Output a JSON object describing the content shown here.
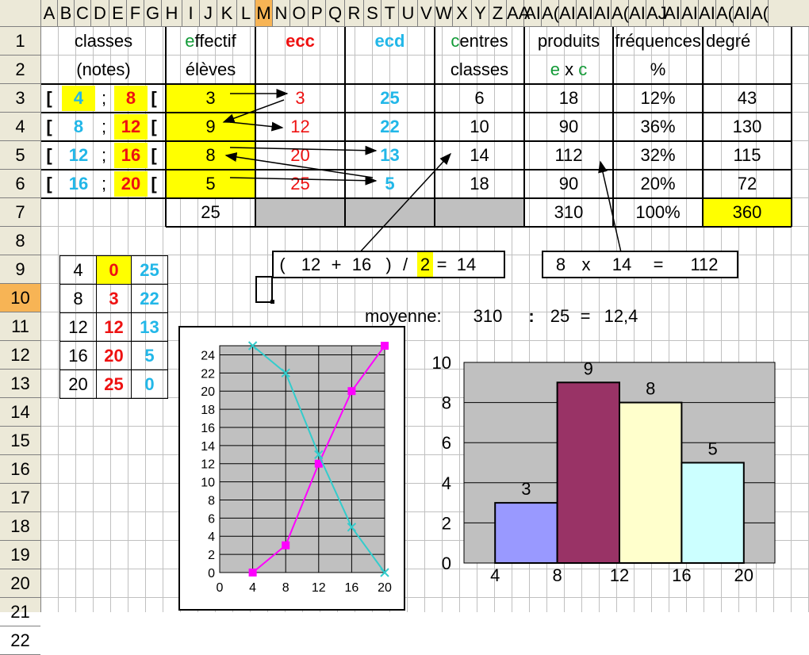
{
  "column_headers": [
    "A",
    "B",
    "C",
    "D",
    "E",
    "F",
    "G",
    "H",
    "I",
    "J",
    "K",
    "L",
    "M",
    "N",
    "O",
    "P",
    "Q",
    "R",
    "S",
    "T",
    "U",
    "V",
    "W",
    "X",
    "Y",
    "Z",
    "AA",
    "AB",
    "AC",
    "AD",
    "AE",
    "AF",
    "AG",
    "AH",
    "AI",
    "AJ",
    "AK",
    "AL",
    "AM",
    "AN",
    "AO",
    "AP",
    "AQ"
  ],
  "column_headers_visible": [
    "A",
    "B",
    "C",
    "D",
    "E",
    "F",
    "G",
    "H",
    "I",
    "J",
    "K",
    "L",
    "M",
    "N",
    "O",
    "P",
    "Q",
    "R",
    "S",
    "T",
    "U",
    "V",
    "W",
    "X",
    "Y",
    "Z",
    "AA",
    "AI",
    "A(",
    "AI",
    "AI",
    "AI",
    "A(",
    "AI",
    "AJ",
    "AI",
    "AI",
    "AI",
    "A(",
    "AI",
    "A("
  ],
  "selected_column": "M",
  "selected_row": "10",
  "row_headers": [
    "1",
    "2",
    "3",
    "4",
    "5",
    "6",
    "7",
    "8",
    "9",
    "10",
    "11",
    "12",
    "13",
    "14",
    "15",
    "16",
    "17",
    "18",
    "19",
    "20",
    "21",
    "22"
  ],
  "table": {
    "header1": [
      "classes",
      "effectif",
      "ecc",
      "ecd",
      "centres",
      "produits",
      "fréquences",
      "degré"
    ],
    "header2": [
      "(notes)",
      "élèves",
      "",
      "",
      "classes",
      "e x c",
      "%",
      ""
    ],
    "header_effectif_initial": "e",
    "header_effectif_rest": "ffectif",
    "header_centres_initial": "c",
    "header_centres_rest": "entres",
    "header_exc_e": "e",
    "header_exc_x": " x ",
    "header_exc_c": "c",
    "class_open": "[",
    "class_sep": ";",
    "class_close": "[",
    "rows": [
      {
        "low": "4",
        "high": "8",
        "effectif": "3",
        "ecc": "3",
        "ecd": "25",
        "centre": "6",
        "produit": "18",
        "freq": "12%",
        "degre": "43"
      },
      {
        "low": "8",
        "high": "12",
        "effectif": "9",
        "ecc": "12",
        "ecd": "22",
        "centre": "10",
        "produit": "90",
        "freq": "36%",
        "degre": "130"
      },
      {
        "low": "12",
        "high": "16",
        "effectif": "8",
        "ecc": "20",
        "ecd": "13",
        "centre": "14",
        "produit": "112",
        "freq": "32%",
        "degre": "115"
      },
      {
        "low": "16",
        "high": "20",
        "effectif": "5",
        "ecc": "25",
        "ecd": "5",
        "centre": "18",
        "produit": "90",
        "freq": "20%",
        "degre": "72"
      }
    ],
    "totals": {
      "effectif": "25",
      "produit": "310",
      "freq": "100%",
      "degre": "360"
    }
  },
  "small_table": [
    [
      "4",
      "0",
      "25"
    ],
    [
      "8",
      "3",
      "22"
    ],
    [
      "12",
      "12",
      "13"
    ],
    [
      "16",
      "20",
      "5"
    ],
    [
      "20",
      "25",
      "0"
    ]
  ],
  "formula_centre": {
    "open": "(",
    "a": "12",
    "plus": "+",
    "b": "16",
    "close": ")",
    "div": "/",
    "two": "2",
    "eq": "=",
    "res": "14"
  },
  "formula_produit": {
    "a": "8",
    "x": "x",
    "b": "14",
    "eq": "=",
    "res": "112"
  },
  "moyenne": {
    "label": "moyenne:",
    "num": "310",
    "div": ":",
    "den": "25",
    "eq": "=",
    "res": "12,4"
  },
  "colors": {
    "red": "#ee1111",
    "blue": "#22b7e8",
    "green": "#129a37",
    "yellow": "#ffff00",
    "magenta": "#ff00ff",
    "cyan": "#33cccc"
  },
  "chart_data": [
    {
      "type": "line",
      "x": [
        4,
        8,
        12,
        16,
        20
      ],
      "series": [
        {
          "values": [
            0,
            3,
            12,
            20,
            25
          ],
          "color": "#ff00ff",
          "marker": "square"
        },
        {
          "values": [
            25,
            22,
            13,
            5,
            0
          ],
          "color": "#33cccc",
          "marker": "x"
        }
      ],
      "xticks": [
        "0",
        "4",
        "8",
        "12",
        "16",
        "20"
      ],
      "yticks": [
        "0",
        "2",
        "4",
        "6",
        "8",
        "10",
        "12",
        "14",
        "16",
        "18",
        "20",
        "22",
        "24"
      ],
      "xlim": [
        0,
        20
      ],
      "ylim": [
        0,
        25
      ],
      "grid": true,
      "title": "",
      "xlabel": "",
      "ylabel": ""
    },
    {
      "type": "bar",
      "bins": [
        [
          4,
          8
        ],
        [
          8,
          12
        ],
        [
          12,
          16
        ],
        [
          16,
          20
        ]
      ],
      "values": [
        3,
        9,
        8,
        5
      ],
      "data_labels": [
        "3",
        "9",
        "8",
        "5"
      ],
      "colors": [
        "#9999ff",
        "#993366",
        "#ffffcc",
        "#ccffff"
      ],
      "xticks": [
        "4",
        "8",
        "12",
        "16",
        "20"
      ],
      "yticks": [
        "0",
        "2",
        "4",
        "6",
        "8",
        "10"
      ],
      "xlim": [
        2,
        22
      ],
      "ylim": [
        0,
        10
      ],
      "grid": true,
      "title": "",
      "xlabel": "",
      "ylabel": ""
    }
  ]
}
